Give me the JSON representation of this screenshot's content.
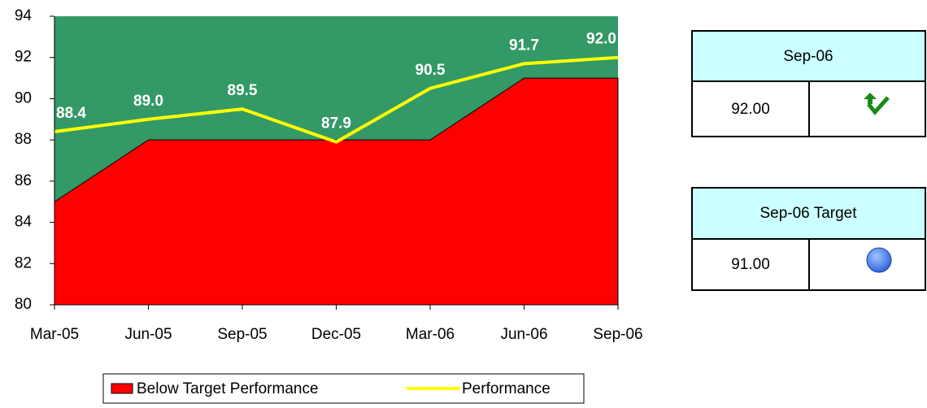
{
  "chart_data": {
    "type": "area-line",
    "categories": [
      "Mar-05",
      "Jun-05",
      "Sep-05",
      "Dec-05",
      "Mar-06",
      "Jun-06",
      "Sep-06"
    ],
    "series": [
      {
        "name": "Below Target Performance",
        "type": "area",
        "color": "#ff0000",
        "values": [
          85,
          88,
          88,
          88,
          88,
          91,
          91
        ]
      },
      {
        "name": "Performance",
        "type": "line",
        "color": "#ffff00",
        "values": [
          88.4,
          89.0,
          89.5,
          87.9,
          90.5,
          91.7,
          92.0
        ],
        "value_labels": [
          "88.4",
          "89.0",
          "89.5",
          "87.9",
          "90.5",
          "91.7",
          "92.0"
        ]
      }
    ],
    "plot_background": "#339966",
    "ylim": [
      80,
      94
    ],
    "yticks": [
      80,
      82,
      84,
      86,
      88,
      90,
      92,
      94
    ],
    "legend": "bottom"
  },
  "panels": [
    {
      "title": "Sep-06",
      "value": "92.00"
    },
    {
      "title": "Sep-06 Target",
      "value": "91.00"
    }
  ]
}
